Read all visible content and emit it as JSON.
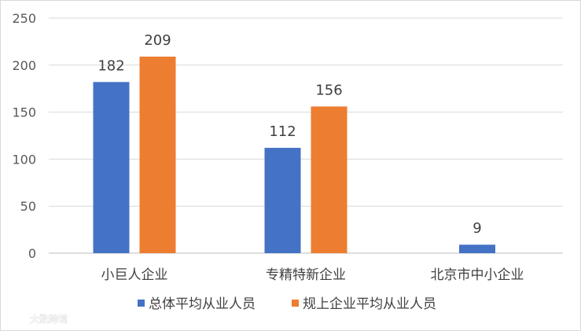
{
  "chart_data": {
    "type": "bar",
    "title": "",
    "xlabel": "",
    "ylabel": "",
    "ylim": [
      0,
      250
    ],
    "yticks": [
      0,
      50,
      100,
      150,
      200,
      250
    ],
    "grid": true,
    "legend_position": "bottom",
    "categories": [
      "小巨人企业",
      "专精特新企业",
      "北京市中小企业"
    ],
    "series": [
      {
        "name": "总体平均从业人员",
        "color": "#4472C4",
        "values": [
          182,
          112,
          9
        ]
      },
      {
        "name": "规上企业平均从业人员",
        "color": "#ED7D31",
        "values": [
          209,
          156,
          null
        ]
      }
    ]
  },
  "watermark": "大数跨境"
}
